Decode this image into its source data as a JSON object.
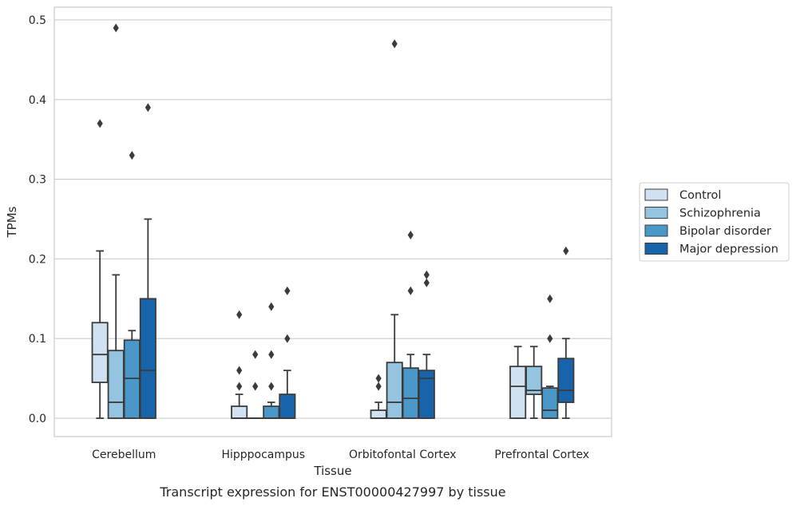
{
  "caption": "Transcript expression for ENST00000427997 by tissue",
  "chart_data": {
    "type": "boxplot",
    "xlabel": "Tissue",
    "ylabel": "TPMs",
    "ylim": [
      -0.023,
      0.516
    ],
    "yticks": [
      0.0,
      0.1,
      0.2,
      0.3,
      0.4,
      0.5
    ],
    "ytick_labels": [
      "0.0",
      "0.1",
      "0.2",
      "0.3",
      "0.4",
      "0.5"
    ],
    "grid": true,
    "legend_position": "right",
    "categories": [
      "Cerebellum",
      "Hipppocampus",
      "Orbitofontal Cortex",
      "Prefrontal Cortex"
    ],
    "series": [
      {
        "name": "Control",
        "color": "#d0e1f2",
        "boxes": [
          {
            "whislo": 0.0,
            "q1": 0.045,
            "med": 0.08,
            "q3": 0.12,
            "whishi": 0.21,
            "fliers": [
              0.37
            ]
          },
          {
            "whislo": 0.0,
            "q1": 0.0,
            "med": 0.0,
            "q3": 0.015,
            "whishi": 0.03,
            "fliers": [
              0.04,
              0.06,
              0.13
            ]
          },
          {
            "whislo": 0.0,
            "q1": 0.0,
            "med": 0.0,
            "q3": 0.01,
            "whishi": 0.02,
            "fliers": [
              0.04,
              0.05
            ]
          },
          {
            "whislo": 0.0,
            "q1": 0.0,
            "med": 0.04,
            "q3": 0.065,
            "whishi": 0.09,
            "fliers": []
          }
        ]
      },
      {
        "name": "Schizophrenia",
        "color": "#94c4df",
        "boxes": [
          {
            "whislo": 0.0,
            "q1": 0.0,
            "med": 0.02,
            "q3": 0.085,
            "whishi": 0.18,
            "fliers": [
              0.49
            ]
          },
          {
            "whislo": 0.0,
            "q1": 0.0,
            "med": 0.0,
            "q3": 0.0,
            "whishi": 0.0,
            "fliers": [
              0.04,
              0.08
            ]
          },
          {
            "whislo": 0.0,
            "q1": 0.0,
            "med": 0.02,
            "q3": 0.07,
            "whishi": 0.13,
            "fliers": [
              0.47
            ]
          },
          {
            "whislo": 0.0,
            "q1": 0.03,
            "med": 0.035,
            "q3": 0.065,
            "whishi": 0.09,
            "fliers": []
          }
        ]
      },
      {
        "name": "Bipolar disorder",
        "color": "#4a98c9",
        "boxes": [
          {
            "whislo": 0.0,
            "q1": 0.0,
            "med": 0.05,
            "q3": 0.098,
            "whishi": 0.11,
            "fliers": [
              0.33
            ]
          },
          {
            "whislo": 0.0,
            "q1": 0.0,
            "med": 0.0,
            "q3": 0.015,
            "whishi": 0.02,
            "fliers": [
              0.04,
              0.08,
              0.14
            ]
          },
          {
            "whislo": 0.0,
            "q1": 0.0,
            "med": 0.025,
            "q3": 0.063,
            "whishi": 0.08,
            "fliers": [
              0.16,
              0.23
            ]
          },
          {
            "whislo": 0.0,
            "q1": 0.0,
            "med": 0.01,
            "q3": 0.038,
            "whishi": 0.04,
            "fliers": [
              0.1,
              0.15
            ]
          }
        ]
      },
      {
        "name": "Major depression",
        "color": "#1764ab",
        "boxes": [
          {
            "whislo": 0.0,
            "q1": 0.0,
            "med": 0.06,
            "q3": 0.15,
            "whishi": 0.25,
            "fliers": [
              0.39
            ]
          },
          {
            "whislo": 0.0,
            "q1": 0.0,
            "med": 0.0,
            "q3": 0.03,
            "whishi": 0.06,
            "fliers": [
              0.1,
              0.16
            ]
          },
          {
            "whislo": 0.0,
            "q1": 0.0,
            "med": 0.05,
            "q3": 0.06,
            "whishi": 0.08,
            "fliers": [
              0.17,
              0.18
            ]
          },
          {
            "whislo": 0.0,
            "q1": 0.02,
            "med": 0.035,
            "q3": 0.075,
            "whishi": 0.1,
            "fliers": [
              0.21
            ]
          }
        ]
      }
    ]
  }
}
